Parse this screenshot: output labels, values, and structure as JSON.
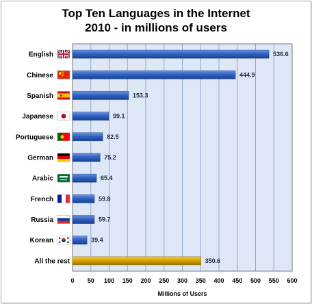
{
  "title_line1": "Top Ten Languages in the Internet",
  "title_line2": "2010 - in millions of users",
  "chart_data": {
    "type": "bar",
    "orientation": "horizontal",
    "title": "Top Ten Languages in the Internet 2010 - in millions of users",
    "xlabel": "Millions of Users",
    "ylabel": "",
    "categories": [
      "English",
      "Chinese",
      "Spanish",
      "Japanese",
      "Portuguese",
      "German",
      "Arabic",
      "French",
      "Russia",
      "Korean",
      "All the rest"
    ],
    "values": [
      536.6,
      444.9,
      153.3,
      99.1,
      82.5,
      75.2,
      65.4,
      59.8,
      59.7,
      39.4,
      350.6
    ],
    "value_labels": [
      "536.6",
      "444.9",
      "153.3",
      "99.1",
      "82.5",
      "75.2",
      "65.4",
      "59.8",
      "59.7",
      "39.4",
      "350.6"
    ],
    "flags": [
      "uk-flag-icon",
      "china-flag-icon",
      "spain-flag-icon",
      "japan-flag-icon",
      "portugal-flag-icon",
      "germany-flag-icon",
      "saudi-arabia-flag-icon",
      "france-flag-icon",
      "russia-flag-icon",
      "south-korea-flag-icon",
      ""
    ],
    "xlim": [
      0,
      600
    ],
    "xticks": [
      0,
      50,
      100,
      150,
      200,
      250,
      300,
      350,
      400,
      450,
      500,
      550,
      600
    ],
    "grid": "vertical",
    "legend": "none",
    "colors": {
      "bar": "#2f62c4",
      "bar_highlight": "#d9a400",
      "plot_background": "#dde7f5",
      "grid": "#8fa8d2"
    }
  }
}
